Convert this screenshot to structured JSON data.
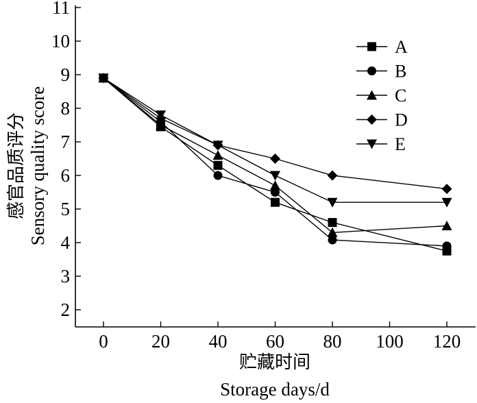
{
  "chart_data": {
    "type": "line",
    "title": "",
    "xlabel_cn": "贮藏时间",
    "xlabel_en": "Storage days/d",
    "ylabel_cn": "感官品质评分",
    "ylabel_en": "Sensory quality score",
    "x": [
      0,
      20,
      40,
      60,
      80,
      120
    ],
    "xlim": [
      -10,
      130
    ],
    "ylim": [
      1,
      11
    ],
    "xticks": [
      0,
      20,
      40,
      60,
      80,
      100,
      120
    ],
    "yticks": [
      2,
      3,
      4,
      5,
      6,
      7,
      8,
      9,
      10,
      11
    ],
    "xtick_labels": [
      "0",
      "20",
      "40",
      "60",
      "80",
      "100",
      "120"
    ],
    "ytick_labels": [
      "2",
      "3",
      "4",
      "5",
      "6",
      "7",
      "8",
      "9",
      "10",
      "11"
    ],
    "legend_position": "top-right",
    "series": [
      {
        "name": "A",
        "marker": "square",
        "values": [
          8.9,
          7.45,
          6.3,
          5.2,
          4.6,
          3.75
        ]
      },
      {
        "name": "B",
        "marker": "circle",
        "values": [
          8.9,
          7.6,
          6.0,
          5.5,
          4.08,
          3.9
        ]
      },
      {
        "name": "C",
        "marker": "triangle-up",
        "values": [
          8.9,
          7.5,
          6.6,
          5.7,
          4.3,
          4.5
        ]
      },
      {
        "name": "D",
        "marker": "diamond",
        "values": [
          8.9,
          7.7,
          6.9,
          6.5,
          6.0,
          5.6
        ]
      },
      {
        "name": "E",
        "marker": "triangle-down",
        "values": [
          8.9,
          7.8,
          6.9,
          6.0,
          5.2,
          5.2
        ]
      }
    ]
  }
}
